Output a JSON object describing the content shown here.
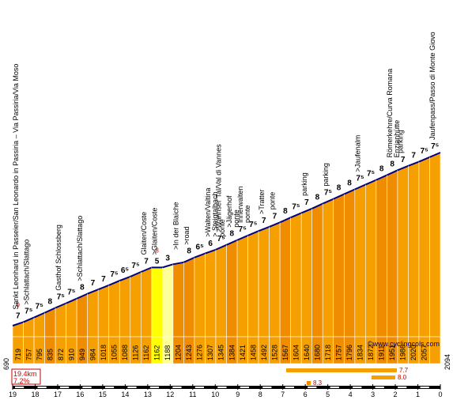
{
  "chart_data": {
    "type": "area",
    "title": "",
    "xlabel": "",
    "ylabel": "",
    "x_axis": {
      "ticks": [
        19,
        18,
        17,
        16,
        15,
        14,
        13,
        12,
        11,
        10,
        9,
        8,
        7,
        6,
        5,
        4,
        3,
        2,
        1,
        0
      ],
      "direction": "descending",
      "unit": "km"
    },
    "ylim": [
      690,
      2094
    ],
    "start_elevation_label": "690",
    "end_elevation_label": "2094",
    "segments": [
      {
        "elev": 719,
        "grade": "7",
        "color": "#f5a000"
      },
      {
        "elev": 757,
        "grade": "7⁵",
        "color": "#f5a000"
      },
      {
        "elev": 795,
        "grade": "7⁵",
        "color": "#f5a000"
      },
      {
        "elev": 835,
        "grade": "8",
        "color": "#f08c00"
      },
      {
        "elev": 872,
        "grade": "7⁵",
        "color": "#f5a000"
      },
      {
        "elev": 910,
        "grade": "7⁵",
        "color": "#f5a000"
      },
      {
        "elev": 949,
        "grade": "8",
        "color": "#f08c00"
      },
      {
        "elev": 984,
        "grade": "7",
        "color": "#f5a000"
      },
      {
        "elev": 1018,
        "grade": "7",
        "color": "#f5a000"
      },
      {
        "elev": 1055,
        "grade": "7⁵",
        "color": "#f5a000"
      },
      {
        "elev": 1088,
        "grade": "6⁵",
        "color": "#f5a000"
      },
      {
        "elev": 1126,
        "grade": "7⁵",
        "color": "#f5a000"
      },
      {
        "elev": 1162,
        "grade": "7",
        "color": "#f5a000"
      },
      {
        "elev": 1162,
        "grade": "5",
        "color": "#ffff00"
      },
      {
        "elev": 1188,
        "grade": "3",
        "color": "#ffff99"
      },
      {
        "elev": 1204,
        "grade": "",
        "color": "#f08c00"
      },
      {
        "elev": 1243,
        "grade": "8",
        "color": "#f08c00"
      },
      {
        "elev": 1276,
        "grade": "6⁵",
        "color": "#f5a000"
      },
      {
        "elev": 1307,
        "grade": "6",
        "color": "#f5a000"
      },
      {
        "elev": 1345,
        "grade": "7⁵",
        "color": "#f5a000"
      },
      {
        "elev": 1384,
        "grade": "8",
        "color": "#f08c00"
      },
      {
        "elev": 1421,
        "grade": "7⁵",
        "color": "#f5a000"
      },
      {
        "elev": 1458,
        "grade": "7⁵",
        "color": "#f5a000"
      },
      {
        "elev": 1492,
        "grade": "7",
        "color": "#f5a000"
      },
      {
        "elev": 1528,
        "grade": "7",
        "color": "#f5a000"
      },
      {
        "elev": 1567,
        "grade": "8",
        "color": "#f08c00"
      },
      {
        "elev": 1604,
        "grade": "7⁵",
        "color": "#f5a000"
      },
      {
        "elev": 1640,
        "grade": "7",
        "color": "#f5a000"
      },
      {
        "elev": 1680,
        "grade": "8",
        "color": "#f08c00"
      },
      {
        "elev": 1718,
        "grade": "7⁵",
        "color": "#f5a000"
      },
      {
        "elev": 1757,
        "grade": "8",
        "color": "#f08c00"
      },
      {
        "elev": 1796,
        "grade": "8",
        "color": "#f08c00"
      },
      {
        "elev": 1834,
        "grade": "7⁵",
        "color": "#f5a000"
      },
      {
        "elev": 1872,
        "grade": "7⁵",
        "color": "#f5a000"
      },
      {
        "elev": 1911,
        "grade": "8",
        "color": "#f08c00"
      },
      {
        "elev": 1951,
        "grade": "8",
        "color": "#f08c00"
      },
      {
        "elev": 1986,
        "grade": "7",
        "color": "#f5a000"
      },
      {
        "elev": 2020,
        "grade": "7",
        "color": "#f5a000"
      },
      {
        "elev": 2057,
        "grade": "7⁵",
        "color": "#f5a000"
      },
      {
        "elev": null,
        "grade": "7⁵",
        "color": "#f5a000"
      }
    ],
    "red_markers": [
      {
        "seg": 0,
        "text": "9"
      },
      {
        "seg": 13,
        "text": "8"
      }
    ],
    "pois": [
      {
        "seg": 0,
        "text": "Sankt Leonhard in Passeier/San Leonardo in Passiria – Via Passiria/Via Moso"
      },
      {
        "seg": 1,
        "text": ">Schlattach/Slattago"
      },
      {
        "seg": 4,
        "text": "Gasthof Schlossberg"
      },
      {
        "seg": 6,
        "text": ">Schlattach/Slattago"
      },
      {
        "seg": 12,
        "text": "Glaiten/Coste"
      },
      {
        "seg": 13,
        "text": ">Glaiten/Coste"
      },
      {
        "seg": 15,
        "text": ">In der Blaiche"
      },
      {
        "seg": 16,
        "text": ">road"
      },
      {
        "seg": 18,
        "text": ">Walten/Valtina"
      },
      {
        "seg": 18,
        "text": "> Steigtalbach"
      },
      {
        "seg": 18,
        "text": "ponte"
      },
      {
        "seg": 19,
        "text": ">Wannser Tal/Val di Vannes"
      },
      {
        "seg": 20,
        "text": ">Jägerhof"
      },
      {
        "seg": 20,
        "text": "ponte"
      },
      {
        "seg": 21,
        "text": "Innerwalten"
      },
      {
        "seg": 21,
        "text": "ponte"
      },
      {
        "seg": 23,
        "text": ">Tratter"
      },
      {
        "seg": 24,
        "text": "ponte"
      },
      {
        "seg": 27,
        "text": "parking"
      },
      {
        "seg": 29,
        "text": "parking"
      },
      {
        "seg": 32,
        "text": ">Jaufenalm"
      },
      {
        "seg": 35,
        "text": "Römerkehre/Curva Romana"
      },
      {
        "seg": 35,
        "text": "Enzianhütte"
      },
      {
        "seg": 36,
        "text": "parking"
      },
      {
        "seg": 39,
        "text": "Jaufenpass/Passo di Monte Giovo"
      }
    ],
    "summary": {
      "distance": "19.4km",
      "avg_grade": "7.2%"
    },
    "steepest": [
      {
        "label": "7.7",
        "color": "#f5a000"
      },
      {
        "label": "8.0",
        "color": "#f5a000"
      },
      {
        "label": "8.3",
        "color": "#f08c00"
      }
    ],
    "website": "©www.cyclingcols.com"
  }
}
